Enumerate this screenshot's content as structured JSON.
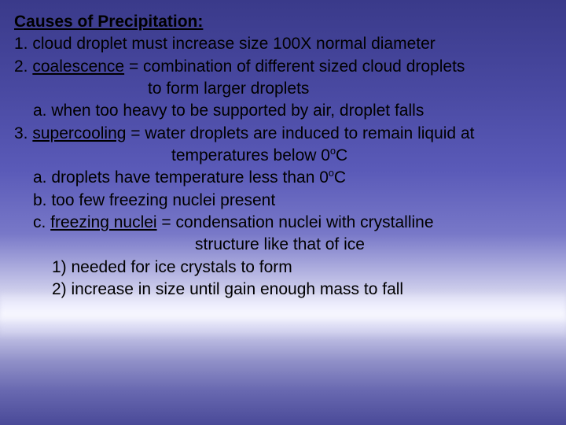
{
  "text_color": "#000000",
  "background_colors": [
    "#3a3a8a",
    "#4848a0",
    "#5a5ab8",
    "#7878c8",
    "#d8d8f0",
    "#e8e8f8",
    "#b8b8e0",
    "#9090c8",
    "#6868b0",
    "#4a4a98"
  ],
  "font_family": "Arial",
  "font_size_pt": 16,
  "heading": "Causes of Precipitation:",
  "item1": "1. cloud droplet must increase size 100X normal diameter",
  "item2_pre": "2. ",
  "item2_term": "coalescence",
  "item2_post": " = combination of different sized cloud droplets",
  "item2_cont": "to form larger droplets",
  "item2a": "a. when too heavy to be supported by air, droplet falls",
  "item3_pre": "3. ",
  "item3_term": "supercooling",
  "item3_post": " = water droplets are induced to remain liquid at",
  "item3_cont_pre": "temperatures below 0",
  "item3_cont_sup": "o",
  "item3_cont_post": "C",
  "item3a_pre": "a. droplets have temperature less than 0",
  "item3a_sup": "o",
  "item3a_post": "C",
  "item3b": "b. too few freezing nuclei present",
  "item3c_pre": "c. ",
  "item3c_term": "freezing nuclei",
  "item3c_post": " = condensation nuclei with crystalline",
  "item3c_cont": "structure like that of ice",
  "item3c1": "1) needed for ice crystals to form",
  "item3c2": "2) increase in size until gain enough mass to fall"
}
